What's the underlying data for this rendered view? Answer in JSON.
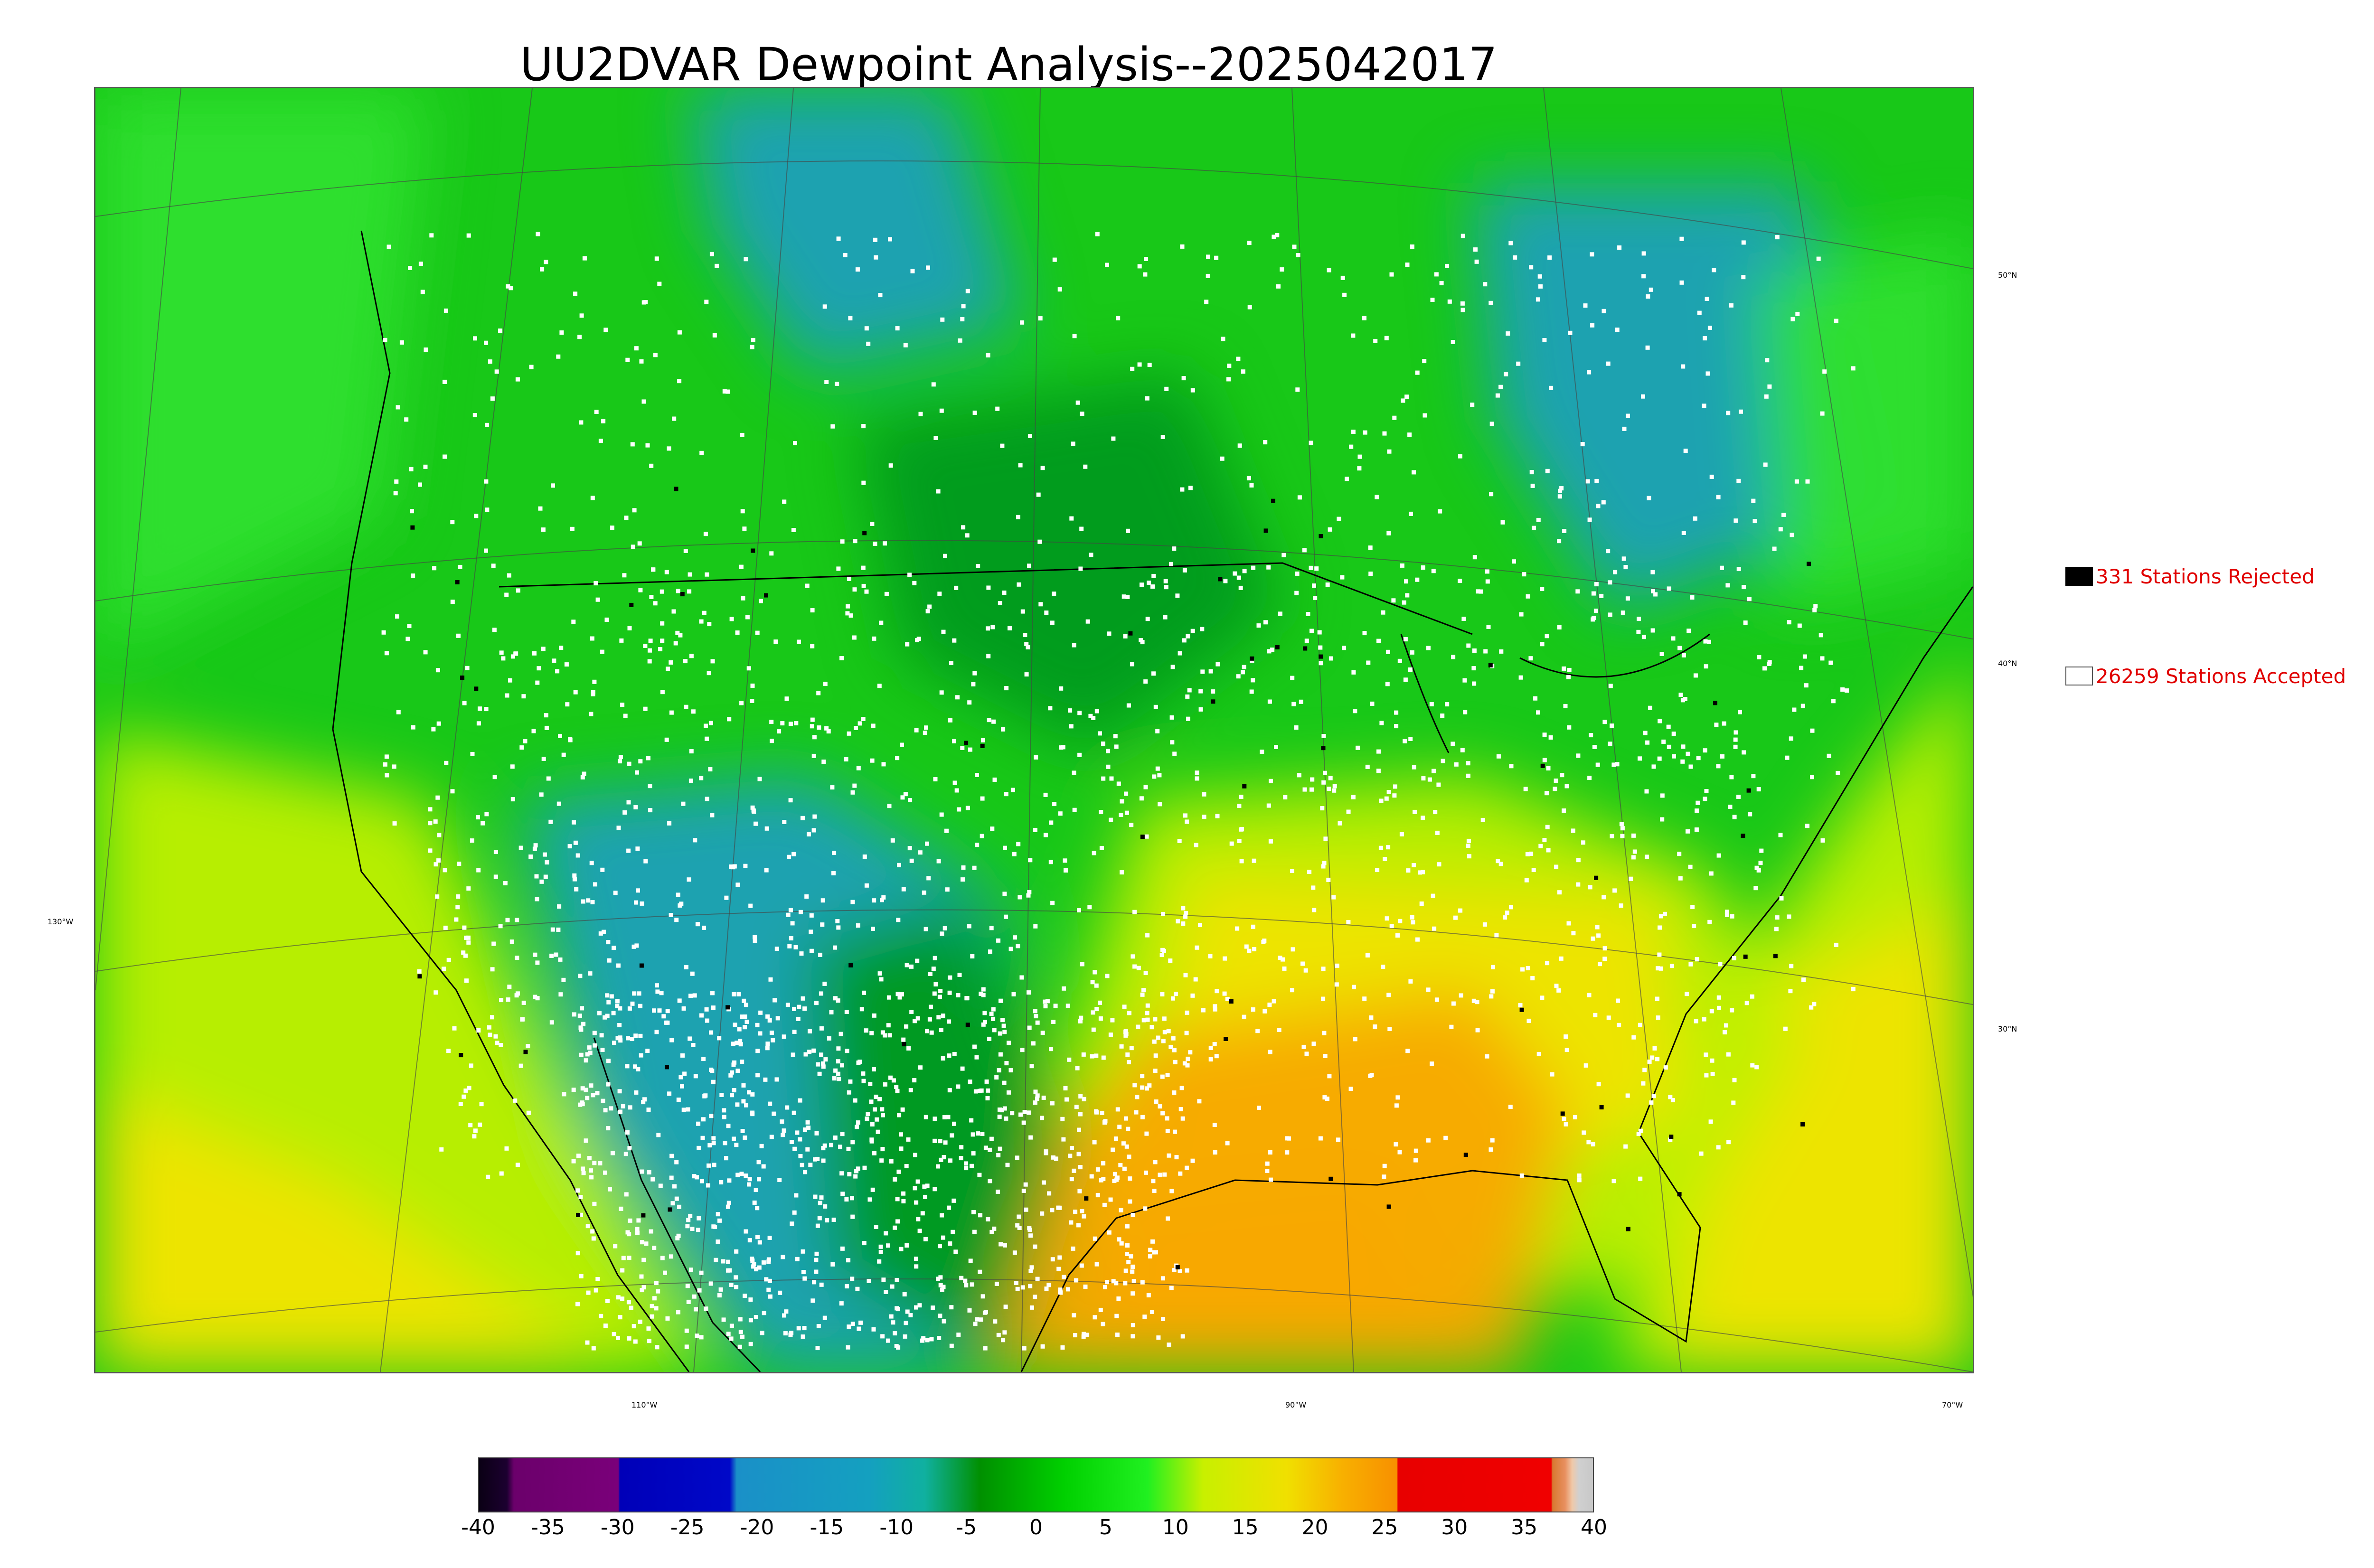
{
  "title": "UU2DVAR Dewpoint Analysis--2025042017",
  "lat_labels": [
    {
      "text": "50°N"
    },
    {
      "text": "40°N"
    },
    {
      "text": "30°N"
    }
  ],
  "lon_labels": [
    {
      "text": "130°W"
    },
    {
      "text": "110°W"
    },
    {
      "text": "90°W"
    },
    {
      "text": "70°W"
    }
  ],
  "legend": {
    "rejected": {
      "label": "331 Stations Rejected",
      "swatch_color": "#000000"
    },
    "accepted": {
      "label": "26259 Stations Accepted",
      "swatch_color": "#ffffff"
    }
  },
  "colorbar": {
    "min": -40,
    "max": 40,
    "ticks": [
      "-40",
      "-35",
      "-30",
      "-25",
      "-20",
      "-15",
      "-10",
      "-5",
      "0",
      "5",
      "10",
      "15",
      "20",
      "25",
      "30",
      "35",
      "40"
    ],
    "stops": [
      {
        "value": -40,
        "color": "#0a0014"
      },
      {
        "value": -38,
        "color": "#1c0030"
      },
      {
        "value": -37.5,
        "color": "#6b006b"
      },
      {
        "value": -30,
        "color": "#7a007a"
      },
      {
        "value": -29.9,
        "color": "#0000b8"
      },
      {
        "value": -22,
        "color": "#0008c8"
      },
      {
        "value": -21.5,
        "color": "#1a90c8"
      },
      {
        "value": -12,
        "color": "#14a0c0"
      },
      {
        "value": -8,
        "color": "#10b0a0"
      },
      {
        "value": -4,
        "color": "#009000"
      },
      {
        "value": 2,
        "color": "#00d000"
      },
      {
        "value": 8,
        "color": "#20f020"
      },
      {
        "value": 12,
        "color": "#c8f000"
      },
      {
        "value": 18,
        "color": "#f0e000"
      },
      {
        "value": 22,
        "color": "#f8b000"
      },
      {
        "value": 25.9,
        "color": "#f89000"
      },
      {
        "value": 26,
        "color": "#e80000"
      },
      {
        "value": 37,
        "color": "#f00000"
      },
      {
        "value": 37.1,
        "color": "#d87830"
      },
      {
        "value": 38,
        "color": "#e89060"
      },
      {
        "value": 38.5,
        "color": "#f0c8a8"
      },
      {
        "value": 39,
        "color": "#d0d0d0"
      },
      {
        "value": 40,
        "color": "#c8c8c8"
      }
    ]
  },
  "chart_data": {
    "type": "heatmap",
    "title": "UU2DVAR Dewpoint Analysis--2025042017",
    "colorbar_range": [
      -40,
      40
    ],
    "colorbar_ticks": [
      -40,
      -35,
      -30,
      -25,
      -20,
      -15,
      -10,
      -5,
      0,
      5,
      10,
      15,
      20,
      25,
      30,
      35,
      40
    ],
    "stations_rejected": 331,
    "stations_accepted": 26259,
    "grid": true,
    "legend_position": "right"
  },
  "map_colors": {
    "dry_blue": "#1aa0b8",
    "deep_green": "#009a1a",
    "green": "#18c818",
    "bright_green": "#30e030",
    "yellow_green": "#c0f000",
    "yellow": "#f0e400",
    "orange": "#f8a800",
    "coast": "#000000",
    "station_accepted": "#ffffff",
    "station_rejected": "#000000"
  }
}
